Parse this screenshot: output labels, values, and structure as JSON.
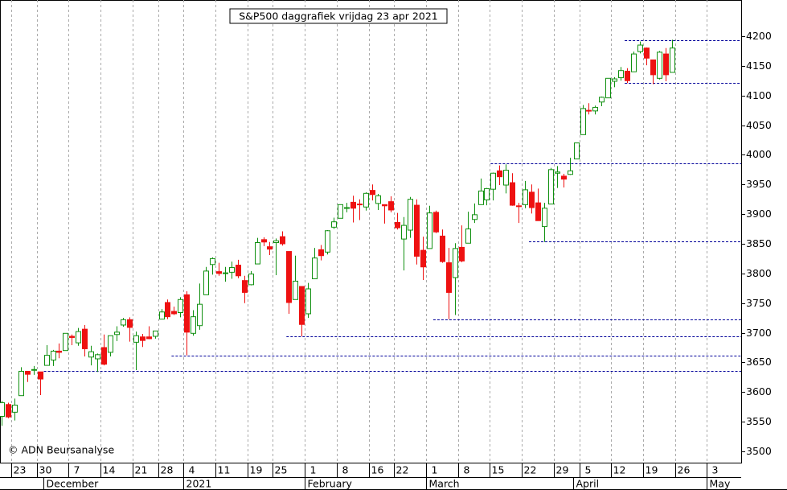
{
  "chart_data": {
    "type": "candlestick",
    "title": "S&P500 daggrafiek vrijdag 23 apr 2021",
    "annotation": "© ADN Beursanalyse",
    "categories": [
      null,
      null,
      "23",
      null,
      null,
      null,
      "30",
      null,
      null,
      null,
      null,
      "7",
      null,
      null,
      null,
      null,
      "14",
      null,
      null,
      null,
      null,
      "21",
      null,
      null,
      null,
      "28",
      null,
      null,
      null,
      "4",
      null,
      null,
      null,
      null,
      "11",
      null,
      null,
      null,
      null,
      "19",
      null,
      null,
      null,
      "25",
      null,
      null,
      null,
      null,
      "1",
      null,
      null,
      null,
      null,
      "8",
      null,
      null,
      null,
      null,
      "16",
      null,
      null,
      null,
      "22",
      null,
      null,
      null,
      null,
      "1",
      null,
      null,
      null,
      null,
      "8",
      null,
      null,
      null,
      null,
      "15",
      null,
      null,
      null,
      null,
      "22",
      null,
      null,
      null,
      null,
      "29",
      null,
      null,
      null,
      "5",
      null,
      null,
      null,
      null,
      "12",
      null,
      null,
      null,
      null,
      "19",
      null,
      null,
      null,
      null,
      "26",
      null,
      null,
      null,
      null,
      "3",
      null,
      null,
      null,
      null
    ],
    "months": [
      {
        "label": "December",
        "index": 7
      },
      {
        "label": "2021",
        "index": 29
      },
      {
        "label": "February",
        "index": 48
      },
      {
        "label": "March",
        "index": 67
      },
      {
        "label": "April",
        "index": 90
      },
      {
        "label": "May",
        "index": 111
      }
    ],
    "open": [
      3559,
      3579,
      3566,
      3594,
      3635,
      3638,
      3634,
      3645,
      3654,
      3669,
      3670,
      3694,
      3683,
      3706,
      3659,
      3656,
      3675,
      3667,
      3697,
      3713,
      3722,
      3684,
      3693,
      3693,
      3694,
      3723,
      3751,
      3736,
      3734,
      3764,
      3699,
      3712,
      3764,
      3815,
      3803,
      3801,
      3802,
      3814,
      3788,
      3781,
      3816,
      3857,
      3845,
      3852,
      3862,
      3837,
      3756,
      3778,
      3732,
      3791,
      3840,
      3836,
      3878,
      3893,
      3910,
      3920,
      3917,
      3912,
      3940,
      3918,
      3916,
      3921,
      3886,
      3858,
      3873,
      3915,
      3839,
      3842,
      3903,
      3863,
      3818,
      3793,
      3844,
      3851,
      3891,
      3916,
      3924,
      3942,
      3973,
      3949,
      3953,
      3914,
      3916,
      3937,
      3919,
      3879,
      3917,
      3969,
      3964,
      3967,
      3993,
      4034,
      4075,
      4074,
      4089,
      4096,
      4124,
      4130,
      4141,
      4140,
      4174,
      4180,
      4160,
      4129,
      4170,
      4139,
      null,
      null,
      null,
      null,
      null,
      null,
      null,
      null,
      null,
      null
    ],
    "high": [
      3585,
      3582,
      3589,
      3642,
      3635,
      3644,
      3634,
      3679,
      3671,
      3682,
      3699,
      3697,
      3708,
      3713,
      3678,
      3665,
      3697,
      3695,
      3711,
      3725,
      3726,
      3702,
      3698,
      3711,
      3703,
      3740,
      3756,
      3744,
      3760,
      3770,
      3738,
      3783,
      3811,
      3827,
      3818,
      3811,
      3820,
      3823,
      3796,
      3804,
      3860,
      3861,
      3853,
      3859,
      3871,
      3837,
      3830,
      3778,
      3784,
      3843,
      3848,
      3873,
      3894,
      3916,
      3919,
      3931,
      3925,
      3937,
      3950,
      3934,
      3916,
      3930,
      3902,
      3895,
      3929,
      3925,
      3862,
      3914,
      3906,
      3874,
      3843,
      3851,
      3881,
      3904,
      3918,
      3960,
      3944,
      3970,
      3982,
      3984,
      3969,
      3919,
      3956,
      3950,
      3943,
      3919,
      3978,
      3981,
      3968,
      3995,
      4020,
      4084,
      4087,
      4083,
      4098,
      4129,
      4131,
      4148,
      4146,
      4174,
      4191,
      4181,
      4160,
      4175,
      4180,
      4194,
      null,
      null,
      null,
      null,
      null,
      null,
      null,
      null,
      null,
      null
    ],
    "low": [
      3543,
      3556,
      3552,
      3594,
      3617,
      3629,
      3595,
      3645,
      3644,
      3657,
      3670,
      3679,
      3678,
      3660,
      3645,
      3634,
      3645,
      3660,
      3686,
      3710,
      3685,
      3637,
      3676,
      3689,
      3690,
      3723,
      3723,
      3730,
      3726,
      3662,
      3695,
      3705,
      3764,
      3798,
      3796,
      3786,
      3791,
      3792,
      3750,
      3780,
      3816,
      3846,
      3831,
      3797,
      3847,
      3732,
      3756,
      3694,
      3725,
      3791,
      3822,
      3832,
      3875,
      3893,
      3903,
      3886,
      3890,
      3906,
      3923,
      3907,
      3884,
      3903,
      3874,
      3805,
      3860,
      3815,
      3789,
      3842,
      3868,
      3818,
      3723,
      3730,
      3819,
      3851,
      3885,
      3916,
      3915,
      3923,
      3949,
      3935,
      3914,
      3885,
      3910,
      3901,
      3889,
      3853,
      3917,
      3944,
      3945,
      3966,
      3993,
      4034,
      4068,
      4068,
      4082,
      4096,
      4114,
      4125,
      4121,
      4140,
      4171,
      4151,
      4119,
      4127,
      4124,
      4139,
      null,
      null,
      null,
      null,
      null,
      null,
      null,
      null,
      null,
      null
    ],
    "close": [
      3582,
      3558,
      3578,
      3635,
      3630,
      3638,
      3622,
      3662,
      3669,
      3667,
      3699,
      3692,
      3702,
      3673,
      3668,
      3663,
      3647,
      3695,
      3701,
      3722,
      3709,
      3695,
      3687,
      3690,
      3703,
      3735,
      3727,
      3732,
      3756,
      3701,
      3727,
      3748,
      3804,
      3825,
      3800,
      3801,
      3810,
      3796,
      3768,
      3799,
      3852,
      3853,
      3841,
      3855,
      3850,
      3751,
      3787,
      3714,
      3774,
      3826,
      3830,
      3872,
      3887,
      3916,
      3911,
      3910,
      3916,
      3935,
      3933,
      3931,
      3914,
      3907,
      3877,
      3881,
      3925,
      3829,
      3811,
      3902,
      3870,
      3820,
      3768,
      3842,
      3821,
      3875,
      3899,
      3939,
      3943,
      3969,
      3963,
      3974,
      3915,
      3913,
      3941,
      3911,
      3889,
      3910,
      3975,
      3971,
      3959,
      3973,
      4020,
      4078,
      4074,
      4080,
      4097,
      4129,
      4128,
      4142,
      4125,
      4170,
      4185,
      4163,
      4135,
      4173,
      4135,
      4180,
      null,
      null,
      null,
      null,
      null,
      null,
      null,
      null,
      null,
      null
    ],
    "levels": [
      {
        "value": 4193,
        "from": 98
      },
      {
        "value": 4121,
        "from": 98
      },
      {
        "value": 3985,
        "from": 77
      },
      {
        "value": 3854,
        "from": 83
      },
      {
        "value": 3723,
        "from": 68
      },
      {
        "value": 3694,
        "from": 45
      },
      {
        "value": 3662,
        "from": 27
      },
      {
        "value": 3636,
        "from": 7
      }
    ],
    "up_color": "#109010",
    "down_color": "#ee1111",
    "level_color": "#000099",
    "grid_color": "#aaaaaa",
    "ylim": [
      3481,
      4261
    ],
    "yticks": [
      3500,
      3550,
      3600,
      3650,
      3700,
      3750,
      3800,
      3850,
      3900,
      3950,
      4000,
      4050,
      4100,
      4150,
      4200
    ]
  }
}
